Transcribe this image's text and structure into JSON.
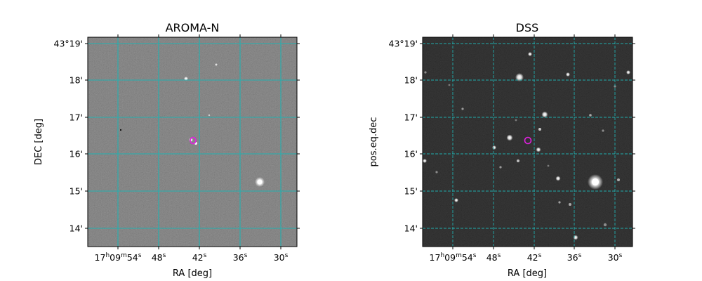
{
  "panels": [
    {
      "id": "left",
      "title": "AROMA-N",
      "ylabel": "DEC [deg]",
      "xlabel": "RA [deg]",
      "style": "noisy-gray",
      "grid_color": "#1fb3b3",
      "grid_style": "solid",
      "marker_color": "#e020e0"
    },
    {
      "id": "right",
      "title": "DSS",
      "ylabel": "pos.eq.dec",
      "xlabel": "RA [deg]",
      "style": "dark-starfield",
      "grid_color": "#1fb3b3",
      "grid_style": "dashed",
      "marker_color": "#e020e0"
    }
  ],
  "dec_ticks": [
    "43°19'",
    "18'",
    "17'",
    "16'",
    "15'",
    "14'"
  ],
  "ra_ticks": [
    {
      "h": "17",
      "m": "09",
      "s": "54"
    },
    {
      "s": "48"
    },
    {
      "s": "42"
    },
    {
      "s": "36"
    },
    {
      "s": "30"
    }
  ],
  "ra_units": {
    "h": "h",
    "m": "m",
    "s": "s"
  }
}
